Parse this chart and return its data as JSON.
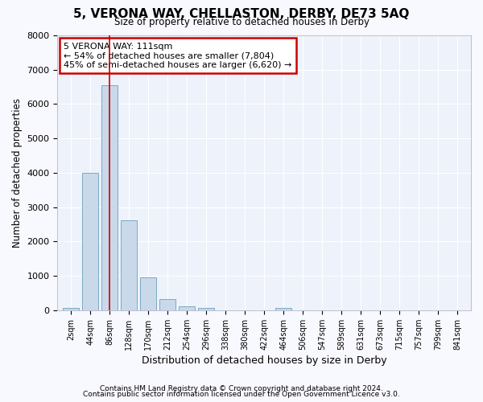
{
  "title": "5, VERONA WAY, CHELLASTON, DERBY, DE73 5AQ",
  "subtitle": "Size of property relative to detached houses in Derby",
  "xlabel": "Distribution of detached houses by size in Derby",
  "ylabel": "Number of detached properties",
  "categories": [
    "2sqm",
    "44sqm",
    "86sqm",
    "128sqm",
    "170sqm",
    "212sqm",
    "254sqm",
    "296sqm",
    "338sqm",
    "380sqm",
    "422sqm",
    "464sqm",
    "506sqm",
    "547sqm",
    "589sqm",
    "631sqm",
    "673sqm",
    "715sqm",
    "757sqm",
    "799sqm",
    "841sqm"
  ],
  "values": [
    70,
    4000,
    6550,
    2620,
    950,
    330,
    105,
    65,
    0,
    0,
    0,
    65,
    0,
    0,
    0,
    0,
    0,
    0,
    0,
    0,
    0
  ],
  "bar_color": "#c9d9ea",
  "bar_edge_color": "#7aaac8",
  "vline_x": 2,
  "vline_color": "#cc0000",
  "annotation_text": "5 VERONA WAY: 111sqm\n← 54% of detached houses are smaller (7,804)\n45% of semi-detached houses are larger (6,620) →",
  "annotation_box_color": "#ffffff",
  "annotation_box_edge": "#cc0000",
  "ylim": [
    0,
    8000
  ],
  "yticks": [
    0,
    1000,
    2000,
    3000,
    4000,
    5000,
    6000,
    7000,
    8000
  ],
  "bg_color": "#eef2fa",
  "grid_color": "#ffffff",
  "footer1": "Contains HM Land Registry data © Crown copyright and database right 2024.",
  "footer2": "Contains public sector information licensed under the Open Government Licence v3.0.",
  "fig_bg": "#f8f8ff"
}
